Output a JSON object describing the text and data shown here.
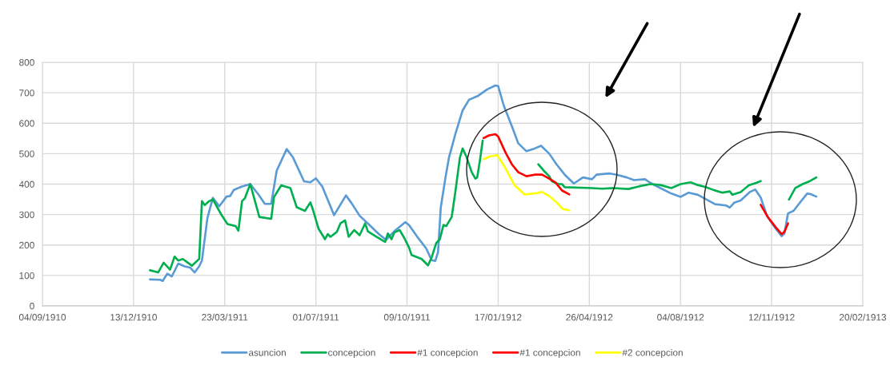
{
  "chart_data": {
    "type": "line",
    "xlim": [
      "1910-09-04",
      "1913-02-20"
    ],
    "xticks": [
      {
        "value": "1910-09-04",
        "label": "04/09/1910"
      },
      {
        "value": "1910-12-13",
        "label": "13/12/1910"
      },
      {
        "value": "1911-03-23",
        "label": "23/03/1911"
      },
      {
        "value": "1911-07-01",
        "label": "01/07/1911"
      },
      {
        "value": "1911-10-09",
        "label": "09/10/1911"
      },
      {
        "value": "1912-01-17",
        "label": "17/01/1912"
      },
      {
        "value": "1912-04-26",
        "label": "26/04/1912"
      },
      {
        "value": "1912-08-04",
        "label": "04/08/1912"
      },
      {
        "value": "1912-11-12",
        "label": "12/11/1912"
      },
      {
        "value": "1913-02-20",
        "label": "20/02/1913"
      }
    ],
    "ylim": [
      0,
      800
    ],
    "yticks": [
      0,
      100,
      200,
      300,
      400,
      500,
      600,
      700,
      800
    ],
    "grid": true,
    "legend": "bottom",
    "series": [
      {
        "name": "asuncion",
        "color": "#5b9bd5",
        "x": [
          "1910-12-31",
          "1911-01-11",
          "1911-01-14",
          "1911-01-19",
          "1911-01-24",
          "1911-01-31",
          "1911-02-07",
          "1911-02-13",
          "1911-02-18",
          "1911-02-23",
          "1911-02-26",
          "1911-03-04",
          "1911-03-10",
          "1911-03-17",
          "1911-03-25",
          "1911-03-29",
          "1911-04-02",
          "1911-04-11",
          "1911-04-20",
          "1911-04-29",
          "1911-05-06",
          "1911-05-13",
          "1911-05-19",
          "1911-05-30",
          "1911-06-06",
          "1911-06-18",
          "1911-06-25",
          "1911-07-01",
          "1911-07-08",
          "1911-07-21",
          "1911-08-03",
          "1911-08-09",
          "1911-08-18",
          "1911-08-27",
          "1911-09-08",
          "1911-09-16",
          "1911-09-25",
          "1911-10-07",
          "1911-10-11",
          "1911-10-20",
          "1911-10-30",
          "1911-11-05",
          "1911-11-09",
          "1911-11-12",
          "1911-11-15",
          "1911-11-20",
          "1911-11-24",
          "1911-12-01",
          "1911-12-09",
          "1911-12-16",
          "1911-12-26",
          "1912-01-05",
          "1912-01-14",
          "1912-01-17",
          "1912-01-23",
          "1912-02-01",
          "1912-02-08",
          "1912-02-17",
          "1912-02-26",
          "1912-03-04",
          "1912-03-13",
          "1912-03-21",
          "1912-03-30",
          "1912-04-09",
          "1912-04-19",
          "1912-04-29",
          "1912-05-04",
          "1912-05-18",
          "1912-05-26",
          "1912-06-06",
          "1912-06-14",
          "1912-06-26",
          "1912-07-02",
          "1912-07-13",
          "1912-07-25",
          "1912-08-04",
          "1912-08-13",
          "1912-08-23",
          "1912-08-31",
          "1912-09-11",
          "1912-09-23",
          "1912-09-27",
          "1912-10-02",
          "1912-10-09",
          "1912-10-19",
          "1912-10-25",
          "1912-10-31",
          "1912-11-07",
          "1912-11-16",
          "1912-11-23",
          "1912-11-26",
          "1912-11-30",
          "1912-12-06",
          "1912-12-14",
          "1912-12-21",
          "1912-12-25",
          "1912-12-31"
        ],
        "values": [
          87,
          86,
          82,
          106,
          97,
          139,
          130,
          126,
          110,
          130,
          149,
          288,
          355,
          327,
          359,
          361,
          381,
          392,
          400,
          366,
          335,
          335,
          444,
          515,
          487,
          409,
          406,
          419,
          392,
          298,
          363,
          338,
          296,
          271,
          236,
          217,
          245,
          275,
          266,
          228,
          189,
          150,
          148,
          176,
          323,
          418,
          487,
          564,
          642,
          677,
          690,
          711,
          724,
          722,
          659,
          590,
          534,
          508,
          517,
          526,
          500,
          465,
          431,
          402,
          422,
          416,
          431,
          435,
          431,
          422,
          413,
          416,
          404,
          387,
          369,
          358,
          372,
          365,
          352,
          334,
          330,
          323,
          339,
          346,
          374,
          382,
          356,
          295,
          256,
          229,
          238,
          304,
          312,
          343,
          369,
          367,
          359
        ]
      },
      {
        "name": "concepcion",
        "color": "#00b050",
        "x": [
          "1910-12-31",
          "1911-01-09",
          "1911-01-15",
          "1911-01-22",
          "1911-01-27",
          "1911-01-31",
          "1911-02-05",
          "1911-02-15",
          "1911-02-21",
          "1911-02-23",
          "1911-02-26",
          "1911-03-01",
          "1911-03-06",
          "1911-03-10",
          "1911-03-19",
          "1911-03-26",
          "1911-04-04",
          "1911-04-07",
          "1911-04-11",
          "1911-04-14",
          "1911-04-20",
          "1911-04-24",
          "1911-04-30",
          "1911-05-13",
          "1911-05-16",
          "1911-05-24",
          "1911-06-03",
          "1911-06-10",
          "1911-06-19",
          "1911-06-25",
          "1911-06-28",
          "1911-07-04",
          "1911-07-11",
          "1911-07-14",
          "1911-07-17",
          "1911-07-24",
          "1911-07-28",
          "1911-08-02",
          "1911-08-06",
          "1911-08-12",
          "1911-08-18",
          "1911-08-24",
          "1911-08-27",
          "1911-09-05",
          "1911-09-15",
          "1911-09-18",
          "1911-09-22",
          "1911-09-25",
          "1911-10-01",
          "1911-10-06",
          "1911-10-11",
          "1911-10-14",
          "1911-10-25",
          "1911-11-01",
          "1911-11-05",
          "1911-11-10",
          "1911-11-14",
          "1911-11-18",
          "1911-11-21",
          "1911-11-27",
          "1911-12-01",
          "1911-12-06",
          "1911-12-09",
          "1911-12-13",
          "1911-12-19",
          "1911-12-23",
          "1911-12-25",
          "1911-12-28",
          "1911-12-31",
          "1912-02-01",
          "1912-03-01",
          "1912-03-07",
          "1912-03-13",
          "1912-03-16",
          "1912-03-23",
          "1912-03-27",
          "1912-03-30",
          "1912-04-29",
          "1912-05-10",
          "1912-05-22",
          "1912-06-08",
          "1912-06-20",
          "1912-07-02",
          "1912-07-13",
          "1912-07-25",
          "1912-08-04",
          "1912-08-15",
          "1912-08-23",
          "1912-08-31",
          "1912-09-10",
          "1912-09-19",
          "1912-09-27",
          "1912-09-30",
          "1912-10-09",
          "1912-10-18",
          "1912-10-26",
          "1912-10-31",
          "1912-11-15",
          "1912-12-01",
          "1912-12-08",
          "1912-12-16",
          "1912-12-24",
          "1912-12-31"
        ],
        "values": [
          117,
          110,
          142,
          119,
          162,
          149,
          154,
          132,
          149,
          154,
          344,
          331,
          344,
          350,
          301,
          269,
          262,
          247,
          344,
          353,
          400,
          357,
          292,
          286,
          357,
          396,
          387,
          324,
          312,
          340,
          314,
          253,
          219,
          236,
          227,
          243,
          271,
          281,
          227,
          249,
          232,
          271,
          245,
          228,
          210,
          238,
          219,
          241,
          249,
          223,
          193,
          167,
          154,
          133,
          159,
          206,
          219,
          266,
          262,
          292,
          374,
          487,
          517,
          491,
          439,
          418,
          422,
          478,
          543,
          null,
          465,
          444,
          426,
          409,
          400,
          400,
          390,
          387,
          385,
          387,
          384,
          393,
          400,
          397,
          387,
          400,
          406,
          397,
          391,
          380,
          372,
          376,
          365,
          374,
          396,
          404,
          410,
          null,
          349,
          387,
          400,
          410,
          422
        ]
      },
      {
        "name": "#1 concepcion",
        "color": "#ff0000",
        "x": [
          "1912-01-01",
          "1912-01-07",
          "1912-01-14",
          "1912-01-17",
          "1912-01-25",
          "1912-02-01",
          "1912-02-08",
          "1912-02-17",
          "1912-02-26",
          "1912-03-05",
          "1912-03-13",
          "1912-03-20",
          "1912-03-27",
          "1912-04-04"
        ],
        "values": [
          551,
          560,
          564,
          556,
          504,
          465,
          439,
          426,
          431,
          431,
          418,
          405,
          379,
          366
        ]
      },
      {
        "name": "#1 concepcion",
        "color": "#ff0000",
        "x": [
          "1912-10-31",
          "1912-11-08",
          "1912-11-16",
          "1912-11-23",
          "1912-11-26",
          "1912-11-30"
        ],
        "values": [
          332,
          291,
          260,
          236,
          243,
          271
        ]
      },
      {
        "name": "#2 concepcion",
        "color": "#ffff00",
        "x": [
          "1912-01-01",
          "1912-01-08",
          "1912-01-16",
          "1912-01-25",
          "1912-02-04",
          "1912-02-15",
          "1912-02-27",
          "1912-03-05",
          "1912-03-13",
          "1912-03-21",
          "1912-03-28",
          "1912-04-04"
        ],
        "values": [
          482,
          491,
          495,
          452,
          396,
          366,
          370,
          374,
          361,
          340,
          318,
          314
        ]
      }
    ]
  }
}
